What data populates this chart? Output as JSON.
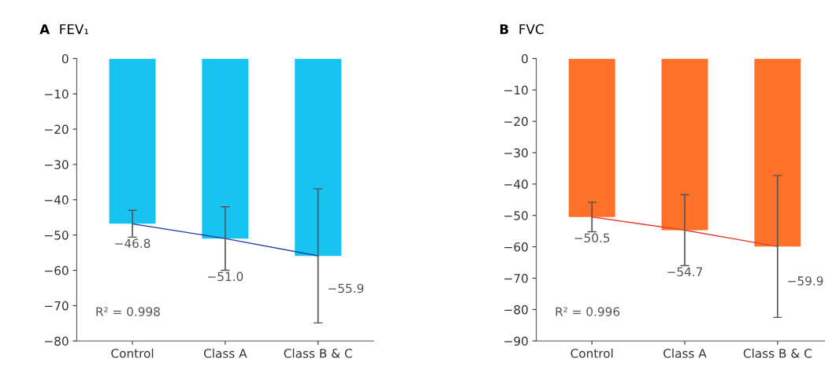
{
  "chart_data": [
    {
      "type": "bar",
      "title": "A",
      "subtitle": "FEV₁",
      "categories": [
        "Control",
        "Class A",
        "Class B & C"
      ],
      "ylim": [
        -80,
        0
      ],
      "yticks": [
        -80,
        -70,
        -60,
        -50,
        -40,
        -30,
        -20,
        -10,
        0
      ],
      "grid": false,
      "legend": false,
      "annotations": [
        "R² = 0.998"
      ],
      "series": [
        {
          "color": "#17c3f0",
          "values": [
            -46.8,
            -51.0,
            -55.9
          ],
          "errors": [
            3.8,
            9,
            19
          ],
          "value_labels": [
            "−46.8",
            "−51.0",
            "−55.9"
          ]
        },
        {
          "type": "line",
          "color": "#2340a0",
          "values": [
            -46.8,
            -51.0,
            -55.9
          ]
        }
      ]
    },
    {
      "type": "bar",
      "title": "B",
      "subtitle": "FVC",
      "categories": [
        "Control",
        "Class A",
        "Class B & C"
      ],
      "ylim": [
        -90,
        0
      ],
      "yticks": [
        -90,
        -80,
        -70,
        -60,
        -50,
        -40,
        -30,
        -20,
        -10,
        0
      ],
      "grid": false,
      "legend": false,
      "annotations": [
        "R² = 0.996"
      ],
      "series": [
        {
          "color": "#ff7029",
          "values": [
            -50.5,
            -54.7,
            -59.9
          ],
          "errors": [
            4.7,
            11.3,
            22.6
          ],
          "value_labels": [
            "−50.5",
            "−54.7",
            "−59.9"
          ]
        },
        {
          "type": "line",
          "color": "#e8402a",
          "values": [
            -50.5,
            -54.7,
            -59.9
          ]
        }
      ]
    }
  ]
}
